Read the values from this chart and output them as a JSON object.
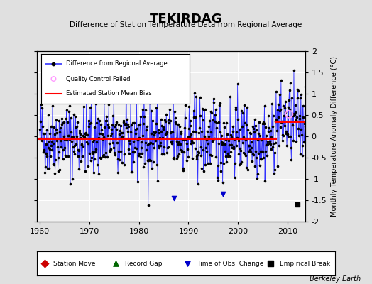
{
  "title": "TEKIRDAG",
  "subtitle": "Difference of Station Temperature Data from Regional Average",
  "ylabel": "Monthly Temperature Anomaly Difference (°C)",
  "xlabel_bottom": "Berkeley Earth",
  "year_start": 1960,
  "year_end": 2014,
  "ylim": [
    -2,
    2
  ],
  "yticks": [
    -2,
    -1.5,
    -1,
    -0.5,
    0,
    0.5,
    1,
    1.5,
    2
  ],
  "xticks": [
    1960,
    1970,
    1980,
    1990,
    2000,
    2010
  ],
  "bias_before": -0.05,
  "bias_after": 0.35,
  "break_year": 2007.5,
  "break_marker_year": 2012,
  "break_marker_val": -1.6,
  "obs_change_years": [
    1987,
    1997
  ],
  "obs_change_vals": [
    -1.45,
    -1.35
  ],
  "bg_color": "#e0e0e0",
  "plot_bg_color": "#f0f0f0",
  "line_color": "#3333ff",
  "dot_color": "#000000",
  "bias_color": "#ff0000",
  "qc_color": "#ff99ff",
  "station_move_color": "#cc0000",
  "record_gap_color": "#006600",
  "obs_change_color": "#0000cc",
  "empirical_break_color": "#000000",
  "random_seed": 42,
  "n_months": 648
}
